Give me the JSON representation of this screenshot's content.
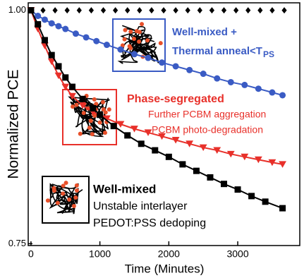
{
  "chart_data": {
    "type": "line",
    "xlabel": "Time (Minutes)",
    "ylabel": "Normalized PCE",
    "xlim": [
      -40,
      3900
    ],
    "ylim": [
      0.748,
      1.008
    ],
    "xticks": [
      0,
      1000,
      2000,
      3000
    ],
    "yticks": [
      {
        "value": 0.75,
        "label": "0.75"
      },
      {
        "value": 1.0,
        "label": "1.00"
      }
    ],
    "series": [
      {
        "marker": "diamond",
        "color": "#000000",
        "line": false,
        "x": [
          0,
          175,
          350,
          525,
          700,
          875,
          1050,
          1225,
          1400,
          1575,
          1750,
          1925,
          2100,
          2275,
          2450,
          2625,
          2800,
          2975,
          3150,
          3325,
          3500,
          3675
        ],
        "values": [
          1.0,
          1.0,
          1.0,
          1.0,
          1.0,
          1.0,
          1.0,
          1.0,
          1.0,
          1.0,
          1.0,
          1.0,
          1.0,
          1.0,
          1.0,
          1.0,
          1.0,
          1.0,
          1.0,
          1.0,
          1.0,
          1.0
        ]
      },
      {
        "marker": "circle",
        "color": "#3a5bc4",
        "line": true,
        "x": [
          0,
          100,
          200,
          300,
          400,
          500,
          650,
          800,
          950,
          1100,
          1300,
          1500,
          1700,
          1900,
          2100,
          2300,
          2500,
          2700,
          2900,
          3100,
          3300,
          3500,
          3650
        ],
        "values": [
          1.0,
          0.994,
          0.99,
          0.986,
          0.983,
          0.98,
          0.975,
          0.971,
          0.967,
          0.963,
          0.958,
          0.953,
          0.949,
          0.944,
          0.94,
          0.936,
          0.932,
          0.927,
          0.923,
          0.92,
          0.916,
          0.912,
          0.909
        ]
      },
      {
        "marker": "triangle",
        "color": "#e8302a",
        "line": true,
        "x": [
          0,
          100,
          200,
          300,
          400,
          500,
          600,
          750,
          900,
          1100,
          1300,
          1500,
          1700,
          1900,
          2100,
          2300,
          2500,
          2700,
          2900,
          3100,
          3300,
          3500,
          3650
        ],
        "values": [
          1.0,
          0.98,
          0.962,
          0.945,
          0.93,
          0.918,
          0.908,
          0.898,
          0.891,
          0.884,
          0.878,
          0.873,
          0.869,
          0.865,
          0.861,
          0.857,
          0.853,
          0.85,
          0.846,
          0.843,
          0.84,
          0.837,
          0.835
        ]
      },
      {
        "marker": "square",
        "color": "#000000",
        "line": true,
        "x": [
          0,
          100,
          200,
          300,
          400,
          500,
          600,
          750,
          900,
          1000,
          1200,
          1400,
          1600,
          1800,
          2000,
          2200,
          2400,
          2600,
          2800,
          3000,
          3200,
          3400,
          3650
        ],
        "values": [
          1.0,
          0.985,
          0.968,
          0.952,
          0.94,
          0.928,
          0.918,
          0.905,
          0.895,
          0.888,
          0.876,
          0.866,
          0.857,
          0.85,
          0.843,
          0.835,
          0.828,
          0.821,
          0.814,
          0.808,
          0.801,
          0.795,
          0.788
        ]
      }
    ],
    "annotations": [
      {
        "text": "Well-mixed +",
        "color": "#3a5bc4",
        "bold": true
      },
      {
        "text": "Thermal anneal<T",
        "color": "#3a5bc4",
        "bold": true
      },
      {
        "text": "PS",
        "color": "#3a5bc4",
        "bold": true
      },
      {
        "text": "Phase-segregated",
        "color": "#e8302a",
        "bold": true
      },
      {
        "text": "Further PCBM aggregation",
        "color": "#e8302a",
        "bold": false
      },
      {
        "text": "PCBM photo-degradation",
        "color": "#e8302a",
        "bold": false
      },
      {
        "text": "Well-mixed",
        "color": "#000000",
        "bold": true
      },
      {
        "text": "Unstable interlayer",
        "color": "#000000",
        "bold": false
      },
      {
        "text": "PEDOT:PSS dedoping",
        "color": "#000000",
        "bold": false
      }
    ]
  }
}
